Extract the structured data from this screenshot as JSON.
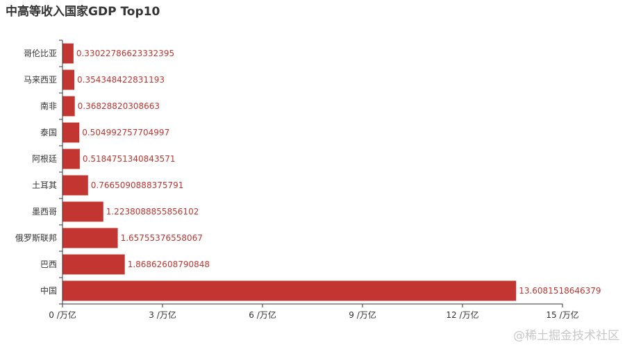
{
  "chart_data": {
    "type": "bar",
    "orientation": "horizontal",
    "title": "中高等收入国家GDP Top10",
    "categories": [
      "中国",
      "巴西",
      "俄罗斯联邦",
      "墨西哥",
      "土耳其",
      "阿根廷",
      "泰国",
      "南非",
      "马来西亚",
      "哥伦比亚"
    ],
    "values": [
      13.6081518646379,
      1.86862608790848,
      1.65755376558067,
      1.2238088855856102,
      0.7665090888375791,
      0.5184751340843571,
      0.504992757704997,
      0.36828820308663,
      0.354348422831193,
      0.33022786623332395
    ],
    "value_labels": [
      "13.6081518646379",
      "1.86862608790848",
      "1.65755376558067",
      "1.2238088855856102",
      "0.7665090888375791",
      "0.5184751340843571",
      "0.504992757704997",
      "0.36828820308663",
      "0.354348422831193",
      "0.33022786623332395"
    ],
    "x_ticks": [
      0,
      3,
      6,
      9,
      12,
      15
    ],
    "x_tick_labels": [
      "0 /万亿",
      "3 /万亿",
      "6 /万亿",
      "9 /万亿",
      "12 /万亿",
      "15 /万亿"
    ],
    "xlim": [
      0,
      15
    ],
    "xlabel": "",
    "ylabel": "",
    "grid": false,
    "colors": {
      "bar": "#c23531",
      "label": "#c23531",
      "axis": "#333333"
    }
  },
  "watermark": "@稀土掘金技术社区"
}
